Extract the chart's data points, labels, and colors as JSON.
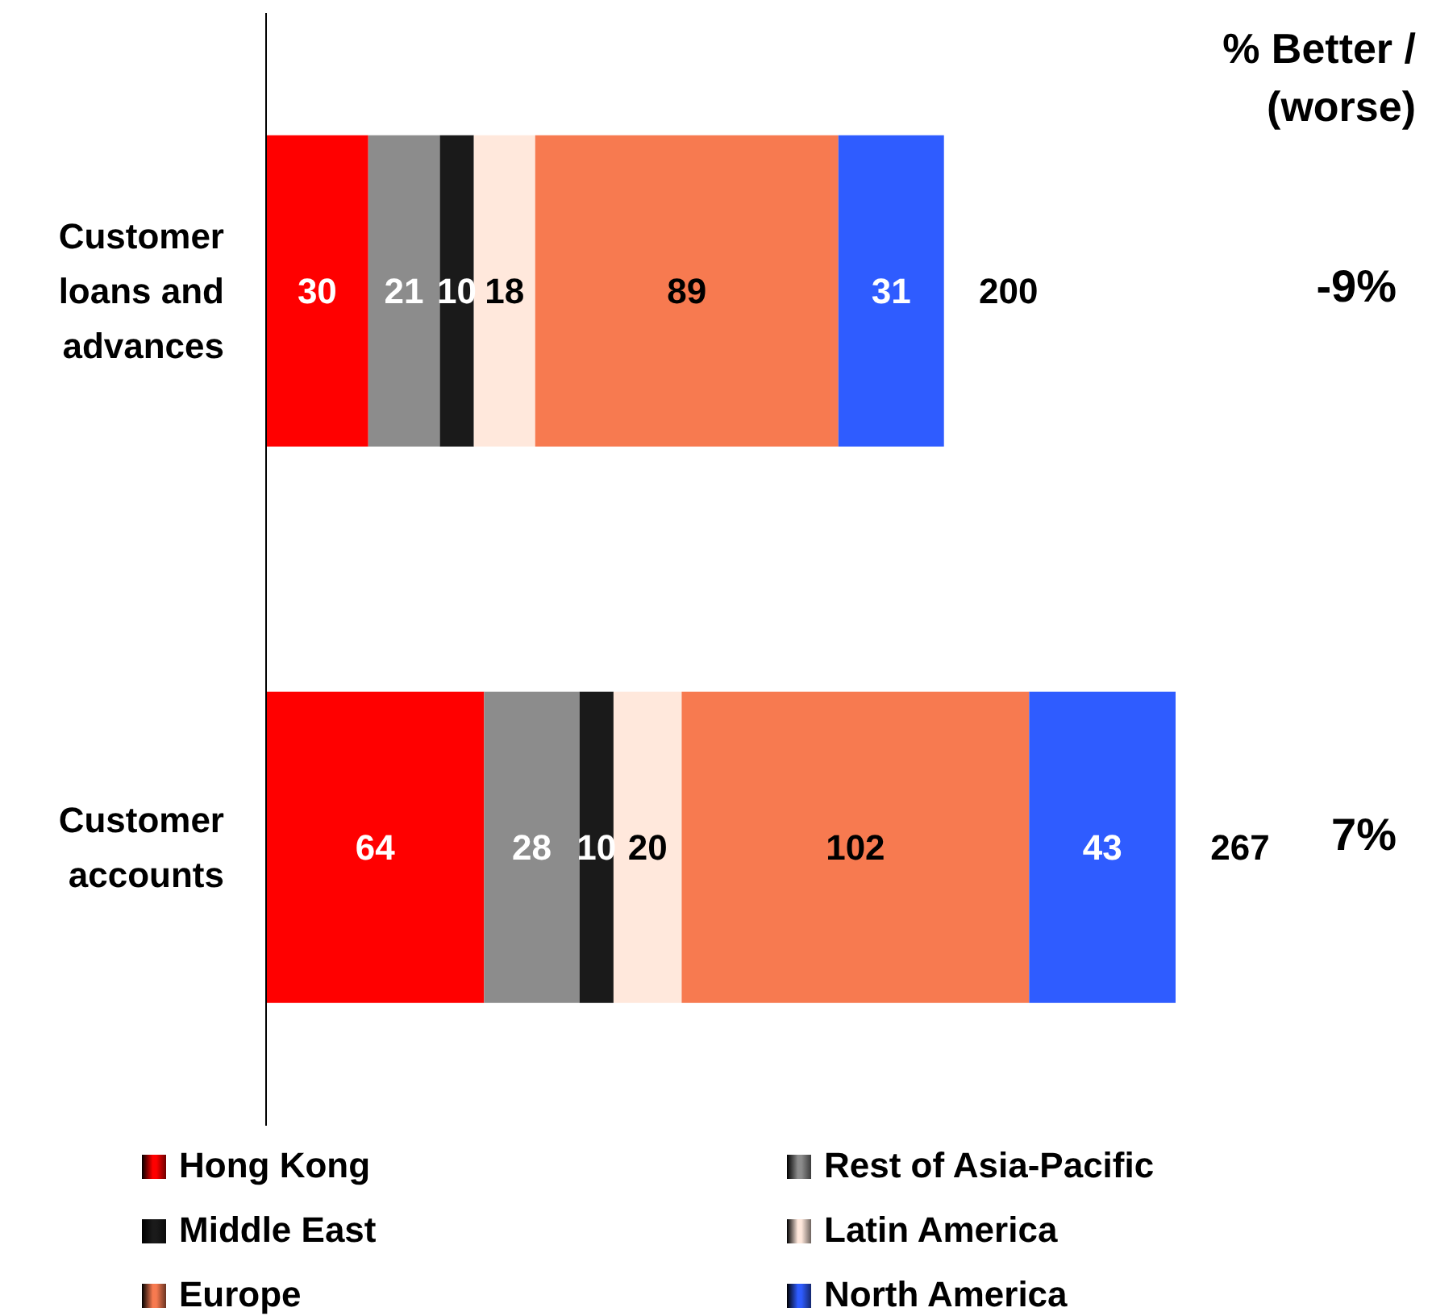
{
  "chart_data": {
    "type": "bar",
    "orientation": "horizontal",
    "stacked": true,
    "categories": [
      "Customer loans and advances",
      "Customer accounts"
    ],
    "series": [
      {
        "name": "Hong Kong",
        "color": "#ff0000",
        "values": [
          30,
          64
        ]
      },
      {
        "name": "Rest of Asia-Pacific",
        "color": "#8c8c8c",
        "values": [
          21,
          28
        ]
      },
      {
        "name": "Middle East",
        "color": "#1a1a1a",
        "values": [
          10,
          10
        ]
      },
      {
        "name": "Latin America",
        "color": "#ffe8dc",
        "values": [
          18,
          20
        ]
      },
      {
        "name": "Europe",
        "color": "#f77a50",
        "values": [
          89,
          102
        ]
      },
      {
        "name": "North America",
        "color": "#2f5cff",
        "values": [
          31,
          43
        ]
      }
    ],
    "data_labels": true,
    "totals": [
      "200",
      "267"
    ],
    "annotations": [
      "% Better / (worse)",
      "-9%",
      "7%"
    ],
    "legend": "bottom",
    "grid": false
  }
}
